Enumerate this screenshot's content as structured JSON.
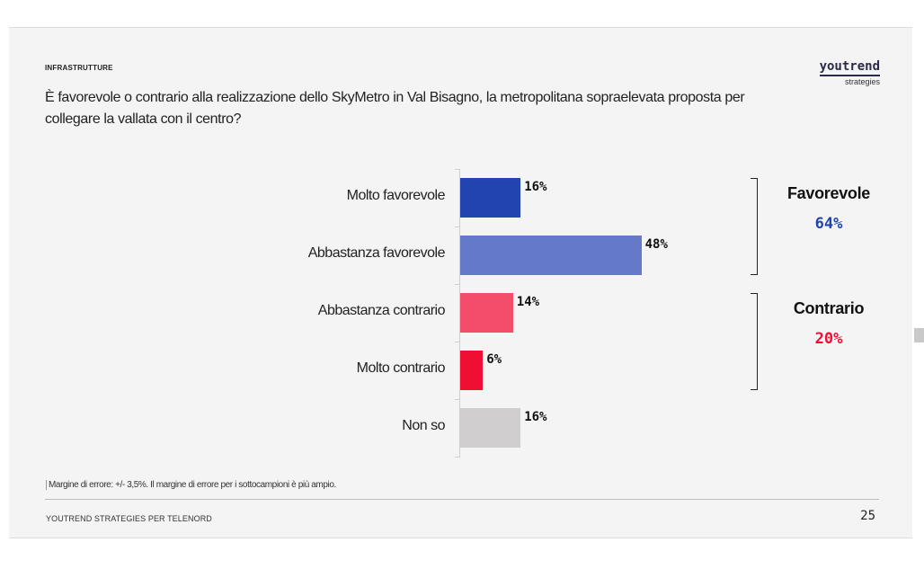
{
  "section": "INFRASTRUTTURE",
  "question": "È favorevole o contrario alla realizzazione dello SkyMetro in Val Bisagno, la metropolitana sopraelevata proposta per collegare la vallata con il centro?",
  "logo": {
    "name": "youtrend",
    "sub": "strategies"
  },
  "chart_data": {
    "type": "bar",
    "orientation": "horizontal",
    "categories": [
      "Molto favorevole",
      "Abbastanza favorevole",
      "Abbastanza contrario",
      "Molto contrario",
      "Non so"
    ],
    "values": [
      16,
      48,
      14,
      6,
      16
    ],
    "value_labels": [
      "16%",
      "48%",
      "14%",
      "6%",
      "16%"
    ],
    "colors": [
      "#2244b0",
      "#6479c9",
      "#f44d6a",
      "#ee0f33",
      "#d0cece"
    ],
    "xlim": [
      0,
      100
    ],
    "groups": [
      {
        "label": "Favorevole",
        "value": 64,
        "value_label": "64%",
        "color": "#2244b0",
        "categories": [
          "Molto favorevole",
          "Abbastanza favorevole"
        ]
      },
      {
        "label": "Contrario",
        "value": 20,
        "value_label": "20%",
        "color": "#ee0f33",
        "categories": [
          "Abbastanza contrario",
          "Molto contrario"
        ]
      }
    ]
  },
  "footnote": "Margine di errore: +/- 3,5%. Il margine di errore per i sottocampioni è più ampio.",
  "footer": "YOUTREND STRATEGIES PER TELENORD",
  "page_number": "25"
}
